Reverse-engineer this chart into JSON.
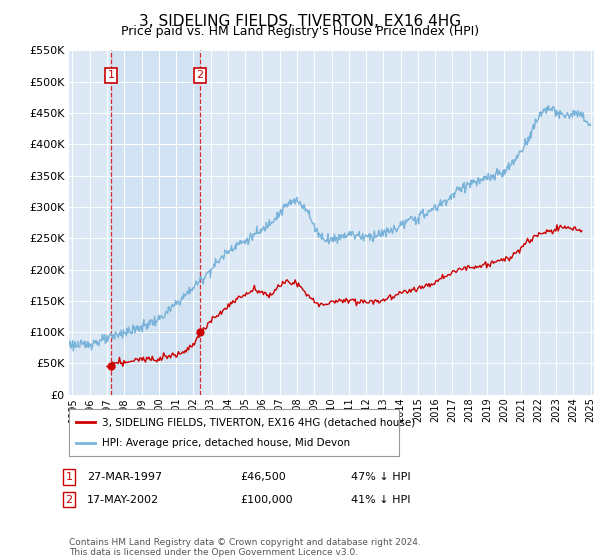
{
  "title": "3, SIDELING FIELDS, TIVERTON, EX16 4HG",
  "subtitle": "Price paid vs. HM Land Registry's House Price Index (HPI)",
  "title_fontsize": 11,
  "subtitle_fontsize": 9,
  "background_color": "#ffffff",
  "plot_bg_color": "#dce9f5",
  "grid_color": "#ffffff",
  "hpi_color": "#7ab3d9",
  "price_color": "#cc0000",
  "shade_color": "#dce9f5",
  "ylim": [
    0,
    550000
  ],
  "yticks": [
    0,
    50000,
    100000,
    150000,
    200000,
    250000,
    300000,
    350000,
    400000,
    450000,
    500000,
    550000
  ],
  "xlim_start": 1994.8,
  "xlim_end": 2025.2,
  "xticks": [
    1995,
    1996,
    1997,
    1998,
    1999,
    2000,
    2001,
    2002,
    2003,
    2004,
    2005,
    2006,
    2007,
    2008,
    2009,
    2010,
    2011,
    2012,
    2013,
    2014,
    2015,
    2016,
    2017,
    2018,
    2019,
    2020,
    2021,
    2022,
    2023,
    2024,
    2025
  ],
  "purchase1_x": 1997.23,
  "purchase1_y": 46500,
  "purchase1_label": "1",
  "purchase2_x": 2002.38,
  "purchase2_y": 100000,
  "purchase2_label": "2",
  "purchase1_date": "27-MAR-1997",
  "purchase1_price": "£46,500",
  "purchase1_hpi": "47% ↓ HPI",
  "purchase2_date": "17-MAY-2002",
  "purchase2_price": "£100,000",
  "purchase2_hpi": "41% ↓ HPI",
  "legend_label_price": "3, SIDELING FIELDS, TIVERTON, EX16 4HG (detached house)",
  "legend_label_hpi": "HPI: Average price, detached house, Mid Devon",
  "footnote": "Contains HM Land Registry data © Crown copyright and database right 2024.\nThis data is licensed under the Open Government Licence v3.0.",
  "hpi_anchors_x": [
    1994.8,
    1995.0,
    1995.5,
    1996.0,
    1996.5,
    1997.0,
    1997.5,
    1998.0,
    1998.5,
    1999.0,
    1999.5,
    2000.0,
    2000.5,
    2001.0,
    2001.5,
    2002.0,
    2002.5,
    2003.0,
    2003.5,
    2004.0,
    2004.5,
    2005.0,
    2005.5,
    2006.0,
    2006.5,
    2007.0,
    2007.5,
    2008.0,
    2008.5,
    2009.0,
    2009.5,
    2010.0,
    2010.5,
    2011.0,
    2011.5,
    2012.0,
    2012.5,
    2013.0,
    2013.5,
    2014.0,
    2014.5,
    2015.0,
    2015.5,
    2016.0,
    2016.5,
    2017.0,
    2017.5,
    2018.0,
    2018.5,
    2019.0,
    2019.5,
    2020.0,
    2020.5,
    2021.0,
    2021.5,
    2022.0,
    2022.5,
    2023.0,
    2023.5,
    2024.0,
    2024.5,
    2025.0
  ],
  "hpi_anchors_y": [
    82000,
    80000,
    78000,
    82000,
    85000,
    88000,
    95000,
    100000,
    103000,
    108000,
    115000,
    120000,
    132000,
    145000,
    158000,
    172000,
    185000,
    200000,
    215000,
    230000,
    240000,
    245000,
    255000,
    262000,
    278000,
    290000,
    305000,
    310000,
    300000,
    268000,
    250000,
    248000,
    252000,
    258000,
    255000,
    252000,
    255000,
    258000,
    262000,
    270000,
    278000,
    283000,
    290000,
    298000,
    308000,
    318000,
    330000,
    338000,
    340000,
    345000,
    350000,
    355000,
    370000,
    390000,
    415000,
    445000,
    460000,
    450000,
    445000,
    450000,
    445000,
    430000
  ],
  "price_anchors_x": [
    1997.0,
    1997.23,
    1997.5,
    1998.0,
    1998.5,
    1999.0,
    1999.5,
    2000.0,
    2000.5,
    2001.0,
    2001.5,
    2002.0,
    2002.38,
    2002.8,
    2003.0,
    2003.5,
    2004.0,
    2004.5,
    2005.0,
    2005.5,
    2006.0,
    2006.5,
    2007.0,
    2007.5,
    2008.0,
    2008.5,
    2009.0,
    2009.5,
    2010.0,
    2010.5,
    2011.0,
    2011.5,
    2012.0,
    2012.5,
    2013.0,
    2013.5,
    2014.0,
    2014.5,
    2015.0,
    2015.5,
    2016.0,
    2016.5,
    2017.0,
    2017.5,
    2018.0,
    2018.5,
    2019.0,
    2019.5,
    2020.0,
    2020.5,
    2021.0,
    2021.5,
    2022.0,
    2022.5,
    2023.0,
    2023.5,
    2024.0,
    2024.5
  ],
  "price_anchors_y": [
    43000,
    46500,
    50000,
    52000,
    54000,
    56000,
    58000,
    60000,
    62000,
    65000,
    70000,
    80000,
    100000,
    108000,
    118000,
    130000,
    142000,
    152000,
    160000,
    168000,
    165000,
    158000,
    175000,
    182000,
    178000,
    162000,
    148000,
    145000,
    147000,
    150000,
    152000,
    150000,
    148000,
    150000,
    152000,
    156000,
    162000,
    168000,
    170000,
    175000,
    180000,
    188000,
    195000,
    200000,
    205000,
    205000,
    208000,
    212000,
    215000,
    222000,
    235000,
    248000,
    255000,
    260000,
    265000,
    268000,
    265000,
    262000
  ]
}
